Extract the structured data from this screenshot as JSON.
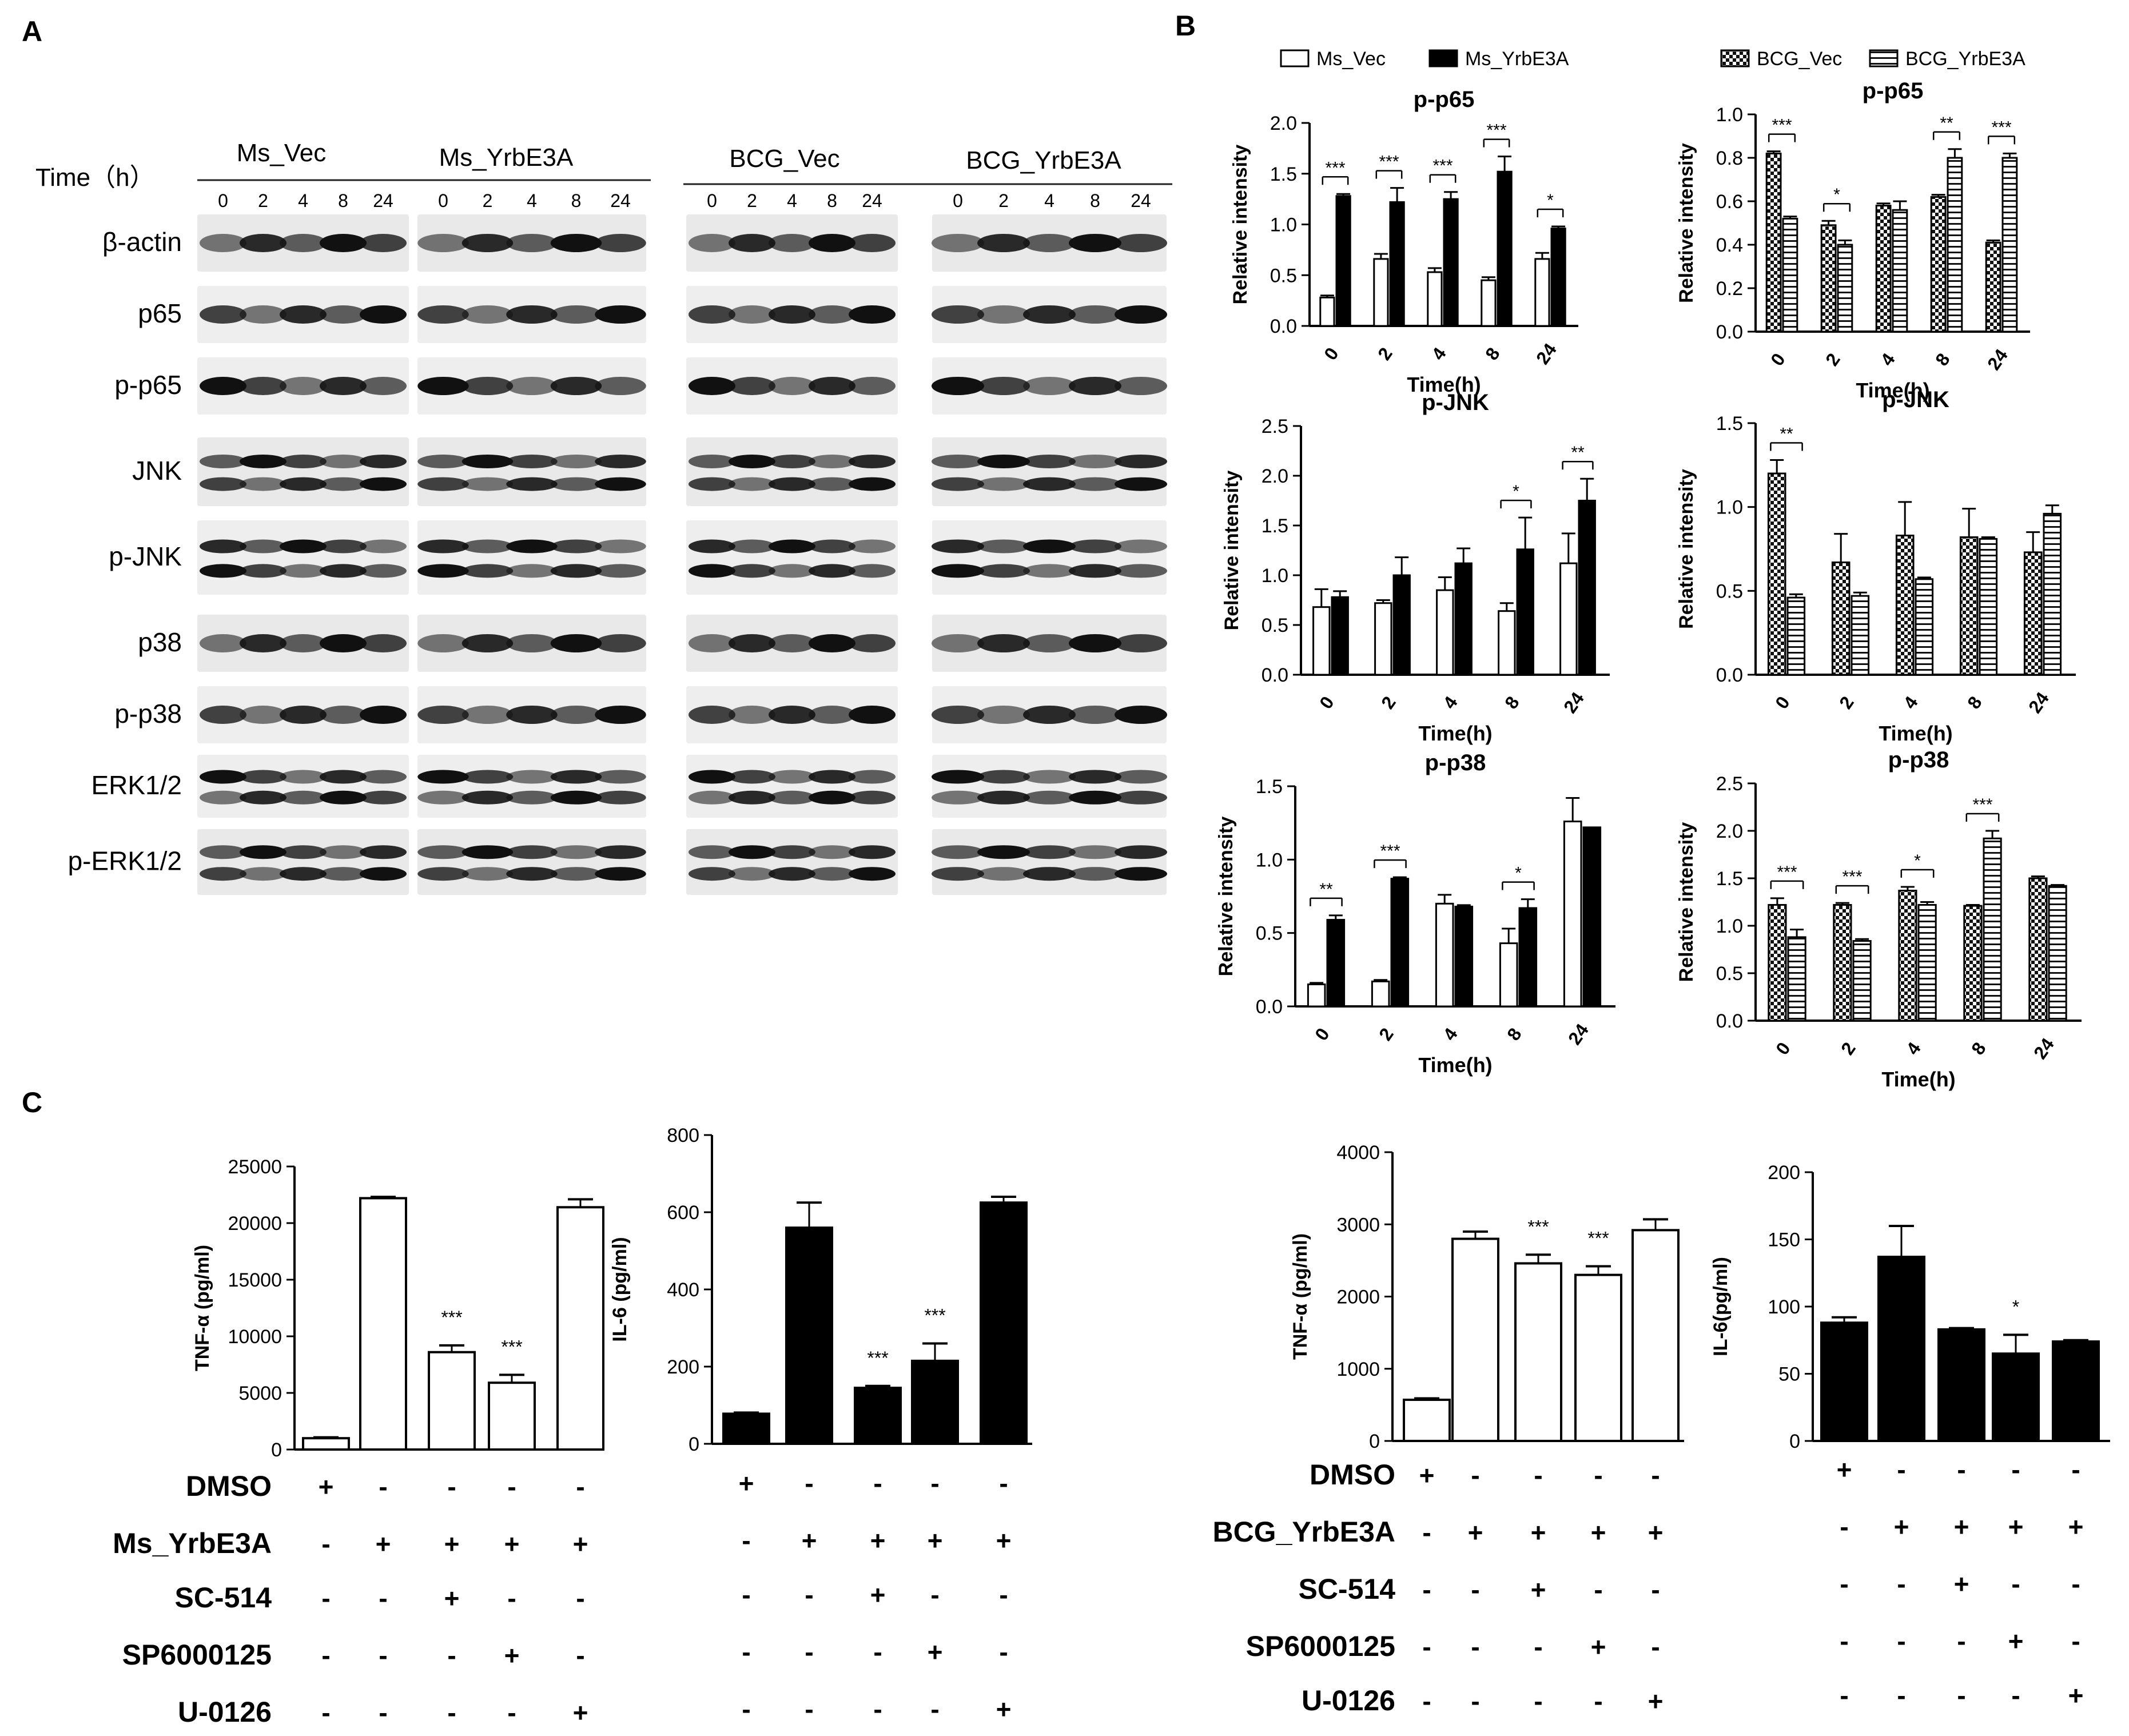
{
  "panel_labels": [
    "A",
    "B",
    "C"
  ],
  "panel_a": {
    "time_label": "Time（h）",
    "groups": [
      "Ms_Vec",
      "Ms_YrbE3A",
      "BCG_Vec",
      "BCG_YrbE3A"
    ],
    "time_points": [
      "0",
      "2",
      "4",
      "8",
      "24"
    ],
    "proteins": [
      "β-actin",
      "p65",
      "p-p65",
      "JNK",
      "p-JNK",
      "p38",
      "p-p38",
      "ERK1/2",
      "p-ERK1/2"
    ]
  },
  "chart_data": [
    {
      "type": "bar",
      "id": "ms_pp65",
      "title": "p-p65",
      "xlabel": "Time(h)",
      "ylabel": "Relative intensity",
      "categories": [
        "0",
        "2",
        "4",
        "8",
        "24"
      ],
      "ylim": [
        0,
        2.0
      ],
      "yticks": [
        "0.0",
        "0.5",
        "1.0",
        "1.5",
        "2.0"
      ],
      "series": [
        {
          "name": "Ms_Vec",
          "style": "open",
          "values": [
            0.28,
            0.66,
            0.53,
            0.45,
            0.66
          ],
          "errors": [
            0.02,
            0.05,
            0.04,
            0.03,
            0.06
          ]
        },
        {
          "name": "Ms_YrbE3A",
          "style": "filled",
          "values": [
            1.28,
            1.22,
            1.25,
            1.52,
            0.96
          ],
          "errors": [
            0.02,
            0.14,
            0.07,
            0.15,
            0.02
          ]
        }
      ],
      "significance": [
        {
          "category": "0",
          "label": "***"
        },
        {
          "category": "2",
          "label": "***"
        },
        {
          "category": "4",
          "label": "***"
        },
        {
          "category": "8",
          "label": "***"
        },
        {
          "category": "24",
          "label": "*"
        }
      ],
      "legend": {
        "position": "top",
        "entries": [
          "Ms_Vec",
          "Ms_YrbE3A"
        ]
      }
    },
    {
      "type": "bar",
      "id": "bcg_pp65",
      "title": "p-p65",
      "xlabel": "Time(h)",
      "ylabel": "Relative intensity",
      "categories": [
        "0",
        "2",
        "4",
        "8",
        "24"
      ],
      "ylim": [
        0,
        1.0
      ],
      "yticks": [
        "0.0",
        "0.2",
        "0.4",
        "0.6",
        "0.8",
        "1.0"
      ],
      "series": [
        {
          "name": "BCG_Vec",
          "style": "checker",
          "values": [
            0.82,
            0.49,
            0.58,
            0.62,
            0.41
          ],
          "errors": [
            0.01,
            0.02,
            0.01,
            0.01,
            0.01
          ]
        },
        {
          "name": "BCG_YrbE3A",
          "style": "hstripe",
          "values": [
            0.52,
            0.4,
            0.56,
            0.8,
            0.8
          ],
          "errors": [
            0.01,
            0.02,
            0.04,
            0.04,
            0.02
          ]
        }
      ],
      "significance": [
        {
          "category": "0",
          "label": "***"
        },
        {
          "category": "2",
          "label": "*"
        },
        {
          "category": "8",
          "label": "**"
        },
        {
          "category": "24",
          "label": "***"
        }
      ],
      "legend": {
        "position": "top",
        "entries": [
          "BCG_Vec",
          "BCG_YrbE3A"
        ]
      }
    },
    {
      "type": "bar",
      "id": "ms_pjnk",
      "title": "p-JNK",
      "xlabel": "Time(h)",
      "ylabel": "Relative intensity",
      "categories": [
        "0",
        "2",
        "4",
        "8",
        "24"
      ],
      "ylim": [
        0,
        2.5
      ],
      "yticks": [
        "0.0",
        "0.5",
        "1.0",
        "1.5",
        "2.0",
        "2.5"
      ],
      "series": [
        {
          "name": "Ms_Vec",
          "style": "open",
          "values": [
            0.68,
            0.72,
            0.85,
            0.64,
            1.12
          ],
          "errors": [
            0.18,
            0.03,
            0.13,
            0.08,
            0.3
          ]
        },
        {
          "name": "Ms_YrbE3A",
          "style": "filled",
          "values": [
            0.78,
            1.0,
            1.12,
            1.26,
            1.75
          ],
          "errors": [
            0.06,
            0.18,
            0.15,
            0.32,
            0.22
          ]
        }
      ],
      "significance": [
        {
          "category": "8",
          "label": "*"
        },
        {
          "category": "24",
          "label": "**"
        }
      ]
    },
    {
      "type": "bar",
      "id": "bcg_pjnk",
      "title": "p-JNK",
      "xlabel": "Time(h)",
      "ylabel": "Relative intensity",
      "categories": [
        "0",
        "2",
        "4",
        "8",
        "24"
      ],
      "ylim": [
        0,
        1.5
      ],
      "yticks": [
        "0.0",
        "0.5",
        "1.0",
        "1.5"
      ],
      "series": [
        {
          "name": "BCG_Vec",
          "style": "checker",
          "values": [
            1.2,
            0.67,
            0.83,
            0.82,
            0.73
          ],
          "errors": [
            0.08,
            0.17,
            0.2,
            0.17,
            0.12
          ]
        },
        {
          "name": "BCG_YrbE3A",
          "style": "hstripe",
          "values": [
            0.46,
            0.47,
            0.57,
            0.81,
            0.96
          ],
          "errors": [
            0.02,
            0.02,
            0.01,
            0.01,
            0.05
          ]
        }
      ],
      "significance": [
        {
          "category": "0",
          "label": "**"
        }
      ]
    },
    {
      "type": "bar",
      "id": "ms_pp38",
      "title": "p-p38",
      "xlabel": "Time(h)",
      "ylabel": "Relative intensity",
      "categories": [
        "0",
        "2",
        "4",
        "8",
        "24"
      ],
      "ylim": [
        0,
        1.5
      ],
      "yticks": [
        "0.0",
        "0.5",
        "1.0",
        "1.5"
      ],
      "series": [
        {
          "name": "Ms_Vec",
          "style": "open",
          "values": [
            0.15,
            0.17,
            0.7,
            0.43,
            1.26
          ],
          "errors": [
            0.01,
            0.01,
            0.06,
            0.1,
            0.16
          ]
        },
        {
          "name": "Ms_YrbE3A",
          "style": "filled",
          "values": [
            0.59,
            0.87,
            0.68,
            0.67,
            1.22
          ],
          "errors": [
            0.03,
            0.01,
            0.01,
            0.06,
            0.0
          ]
        }
      ],
      "significance": [
        {
          "category": "0",
          "label": "**"
        },
        {
          "category": "2",
          "label": "***"
        },
        {
          "category": "8",
          "label": "*"
        }
      ]
    },
    {
      "type": "bar",
      "id": "bcg_pp38",
      "title": "p-p38",
      "xlabel": "Time(h)",
      "ylabel": "Relative intensity",
      "categories": [
        "0",
        "2",
        "4",
        "8",
        "24"
      ],
      "ylim": [
        0,
        2.5
      ],
      "yticks": [
        "0.0",
        "0.5",
        "1.0",
        "1.5",
        "2.0",
        "2.5"
      ],
      "series": [
        {
          "name": "BCG_Vec",
          "style": "checker",
          "values": [
            1.22,
            1.22,
            1.37,
            1.21,
            1.5
          ],
          "errors": [
            0.07,
            0.02,
            0.04,
            0.01,
            0.02
          ]
        },
        {
          "name": "BCG_YrbE3A",
          "style": "hstripe",
          "values": [
            0.88,
            0.84,
            1.22,
            1.92,
            1.42
          ],
          "errors": [
            0.08,
            0.02,
            0.03,
            0.08,
            0.01
          ]
        }
      ],
      "significance": [
        {
          "category": "0",
          "label": "***"
        },
        {
          "category": "2",
          "label": "***"
        },
        {
          "category": "4",
          "label": "*"
        },
        {
          "category": "8",
          "label": "***"
        }
      ]
    },
    {
      "type": "bar",
      "id": "c_ms_tnf",
      "ylabel": "TNF-α (pg/ml)",
      "ylim": [
        0,
        25000
      ],
      "yticks": [
        "0",
        "5000",
        "10000",
        "15000",
        "20000",
        "25000"
      ],
      "style": "open",
      "values": [
        1000,
        22200,
        8600,
        5900,
        21400
      ],
      "errors": [
        80,
        120,
        600,
        700,
        700
      ],
      "significance": [
        "",
        "",
        "***",
        "***",
        ""
      ]
    },
    {
      "type": "bar",
      "id": "c_ms_il6",
      "ylabel": "IL-6 (pg/ml)",
      "ylim": [
        0,
        800
      ],
      "yticks": [
        "0",
        "200",
        "400",
        "600",
        "800"
      ],
      "style": "filled",
      "values": [
        78,
        560,
        145,
        215,
        625
      ],
      "errors": [
        3,
        65,
        5,
        45,
        15
      ],
      "significance": [
        "",
        "",
        "***",
        "***",
        ""
      ]
    },
    {
      "type": "bar",
      "id": "c_bcg_tnf",
      "ylabel": "TNF-α (pg/ml)",
      "ylim": [
        0,
        4000
      ],
      "yticks": [
        "0",
        "1000",
        "2000",
        "3000",
        "4000"
      ],
      "style": "open",
      "values": [
        570,
        2800,
        2460,
        2300,
        2920
      ],
      "errors": [
        20,
        100,
        120,
        120,
        150
      ],
      "significance": [
        "",
        "",
        "***",
        "***",
        ""
      ]
    },
    {
      "type": "bar",
      "id": "c_bcg_il6",
      "ylabel": "IL-6(pg/ml)",
      "ylim": [
        0,
        200
      ],
      "yticks": [
        "0",
        "50",
        "100",
        "150",
        "200"
      ],
      "style": "filled",
      "values": [
        88,
        137,
        83,
        65,
        74
      ],
      "errors": [
        4,
        23,
        1,
        14,
        1
      ],
      "significance": [
        "",
        "",
        "",
        "*",
        ""
      ]
    }
  ],
  "panel_c": {
    "left": {
      "rows": [
        {
          "label": "DMSO",
          "signs": [
            "+",
            "-",
            "-",
            "-",
            "-"
          ]
        },
        {
          "label": "Ms_YrbE3A",
          "signs": [
            "-",
            "+",
            "+",
            "+",
            "+"
          ]
        },
        {
          "label": "SC-514",
          "signs": [
            "-",
            "-",
            "+",
            "-",
            "-"
          ]
        },
        {
          "label": "SP6000125",
          "signs": [
            "-",
            "-",
            "-",
            "+",
            "-"
          ]
        },
        {
          "label": "U-0126",
          "signs": [
            "-",
            "-",
            "-",
            "-",
            "+"
          ]
        }
      ]
    },
    "right": {
      "rows": [
        {
          "label": "DMSO",
          "signs": [
            "+",
            "-",
            "-",
            "-",
            "-"
          ]
        },
        {
          "label": "BCG_YrbE3A",
          "signs": [
            "-",
            "+",
            "+",
            "+",
            "+"
          ]
        },
        {
          "label": "SC-514",
          "signs": [
            "-",
            "-",
            "+",
            "-",
            "-"
          ]
        },
        {
          "label": "SP6000125",
          "signs": [
            "-",
            "-",
            "-",
            "+",
            "-"
          ]
        },
        {
          "label": "U-0126",
          "signs": [
            "-",
            "-",
            "-",
            "-",
            "+"
          ]
        }
      ]
    }
  }
}
